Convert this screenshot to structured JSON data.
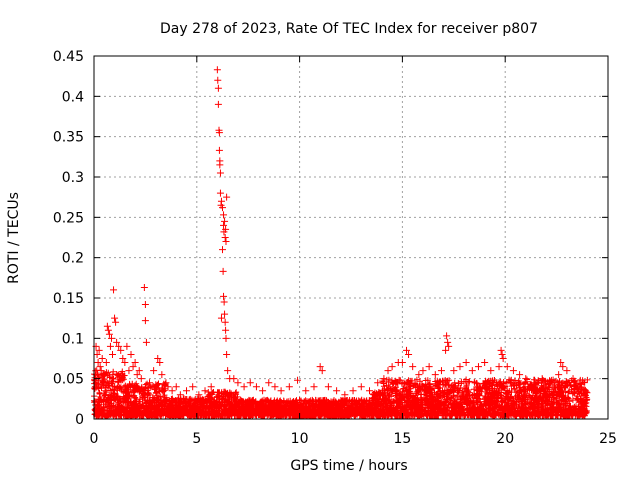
{
  "chart_data": {
    "type": "scatter",
    "title": "Day 278 of 2023, Rate Of TEC Index for receiver p807",
    "xlabel": "GPS time / hours",
    "ylabel": "ROTI / TECUs",
    "xlim": [
      0,
      25
    ],
    "ylim": [
      0,
      0.45
    ],
    "x_ticks": [
      "0",
      "5",
      "10",
      "15",
      "20",
      "25"
    ],
    "y_ticks": [
      "0",
      "0.05",
      "0.1",
      "0.15",
      "0.2",
      "0.25",
      "0.3",
      "0.35",
      "0.4",
      "0.45"
    ],
    "grid": true,
    "marker": "+",
    "series": [
      {
        "color": "#ff0000",
        "points": [
          [
            0.1,
            0.09
          ],
          [
            0.15,
            0.08
          ],
          [
            0.2,
            0.07
          ],
          [
            0.25,
            0.085
          ],
          [
            0.3,
            0.065
          ],
          [
            0.35,
            0.06
          ],
          [
            0.4,
            0.075
          ],
          [
            0.5,
            0.055
          ],
          [
            0.6,
            0.07
          ],
          [
            0.65,
            0.115
          ],
          [
            0.7,
            0.11
          ],
          [
            0.75,
            0.105
          ],
          [
            0.8,
            0.09
          ],
          [
            0.85,
            0.1
          ],
          [
            0.9,
            0.08
          ],
          [
            0.95,
            0.16
          ],
          [
            1.0,
            0.125
          ],
          [
            1.05,
            0.12
          ],
          [
            1.1,
            0.095
          ],
          [
            1.2,
            0.09
          ],
          [
            1.3,
            0.085
          ],
          [
            1.4,
            0.075
          ],
          [
            1.5,
            0.07
          ],
          [
            1.6,
            0.09
          ],
          [
            1.7,
            0.06
          ],
          [
            1.8,
            0.08
          ],
          [
            1.9,
            0.065
          ],
          [
            2.0,
            0.07
          ],
          [
            2.1,
            0.055
          ],
          [
            2.2,
            0.06
          ],
          [
            2.3,
            0.05
          ],
          [
            2.45,
            0.163
          ],
          [
            2.5,
            0.142
          ],
          [
            2.5,
            0.122
          ],
          [
            2.55,
            0.095
          ],
          [
            2.7,
            0.045
          ],
          [
            2.9,
            0.06
          ],
          [
            3.1,
            0.075
          ],
          [
            3.2,
            0.07
          ],
          [
            3.3,
            0.055
          ],
          [
            3.5,
            0.045
          ],
          [
            3.6,
            0.04
          ],
          [
            3.8,
            0.035
          ],
          [
            4.0,
            0.04
          ],
          [
            4.2,
            0.03
          ],
          [
            4.5,
            0.035
          ],
          [
            4.8,
            0.04
          ],
          [
            5.1,
            0.03
          ],
          [
            5.4,
            0.035
          ],
          [
            5.7,
            0.04
          ],
          [
            6.0,
            0.433
          ],
          [
            6.02,
            0.42
          ],
          [
            6.05,
            0.41
          ],
          [
            6.05,
            0.39
          ],
          [
            6.08,
            0.358
          ],
          [
            6.1,
            0.355
          ],
          [
            6.1,
            0.333
          ],
          [
            6.12,
            0.32
          ],
          [
            6.12,
            0.315
          ],
          [
            6.15,
            0.305
          ],
          [
            6.15,
            0.28
          ],
          [
            6.18,
            0.265
          ],
          [
            6.2,
            0.27
          ],
          [
            6.25,
            0.262
          ],
          [
            6.3,
            0.253
          ],
          [
            6.3,
            0.24
          ],
          [
            6.32,
            0.232
          ],
          [
            6.35,
            0.245
          ],
          [
            6.38,
            0.225
          ],
          [
            6.4,
            0.235
          ],
          [
            6.42,
            0.22
          ],
          [
            6.45,
            0.275
          ],
          [
            6.25,
            0.21
          ],
          [
            6.28,
            0.183
          ],
          [
            6.3,
            0.152
          ],
          [
            6.33,
            0.145
          ],
          [
            6.35,
            0.13
          ],
          [
            6.38,
            0.12
          ],
          [
            6.4,
            0.11
          ],
          [
            6.42,
            0.1
          ],
          [
            6.45,
            0.08
          ],
          [
            6.2,
            0.125
          ],
          [
            6.5,
            0.06
          ],
          [
            6.6,
            0.05
          ],
          [
            6.8,
            0.05
          ],
          [
            7.0,
            0.045
          ],
          [
            7.3,
            0.04
          ],
          [
            7.6,
            0.045
          ],
          [
            7.9,
            0.04
          ],
          [
            8.2,
            0.035
          ],
          [
            8.5,
            0.045
          ],
          [
            8.8,
            0.04
          ],
          [
            9.1,
            0.035
          ],
          [
            9.5,
            0.04
          ],
          [
            9.9,
            0.048
          ],
          [
            10.3,
            0.035
          ],
          [
            10.7,
            0.04
          ],
          [
            11.0,
            0.065
          ],
          [
            11.1,
            0.06
          ],
          [
            11.4,
            0.04
          ],
          [
            11.8,
            0.035
          ],
          [
            12.2,
            0.03
          ],
          [
            12.6,
            0.035
          ],
          [
            13.0,
            0.04
          ],
          [
            13.4,
            0.035
          ],
          [
            13.8,
            0.045
          ],
          [
            14.1,
            0.05
          ],
          [
            14.3,
            0.06
          ],
          [
            14.5,
            0.065
          ],
          [
            14.8,
            0.07
          ],
          [
            15.0,
            0.07
          ],
          [
            15.2,
            0.085
          ],
          [
            15.3,
            0.08
          ],
          [
            15.5,
            0.065
          ],
          [
            15.8,
            0.055
          ],
          [
            16.0,
            0.06
          ],
          [
            16.3,
            0.065
          ],
          [
            16.6,
            0.055
          ],
          [
            16.9,
            0.06
          ],
          [
            17.1,
            0.085
          ],
          [
            17.15,
            0.103
          ],
          [
            17.2,
            0.095
          ],
          [
            17.25,
            0.09
          ],
          [
            17.5,
            0.06
          ],
          [
            17.8,
            0.065
          ],
          [
            18.1,
            0.07
          ],
          [
            18.4,
            0.06
          ],
          [
            18.7,
            0.065
          ],
          [
            19.0,
            0.07
          ],
          [
            19.3,
            0.06
          ],
          [
            19.7,
            0.065
          ],
          [
            19.8,
            0.085
          ],
          [
            19.85,
            0.08
          ],
          [
            19.9,
            0.075
          ],
          [
            20.1,
            0.065
          ],
          [
            20.4,
            0.06
          ],
          [
            20.7,
            0.055
          ],
          [
            21.0,
            0.05
          ],
          [
            21.4,
            0.045
          ],
          [
            21.8,
            0.05
          ],
          [
            22.2,
            0.045
          ],
          [
            22.6,
            0.055
          ],
          [
            22.7,
            0.07
          ],
          [
            22.8,
            0.065
          ],
          [
            23.0,
            0.06
          ],
          [
            23.3,
            0.05
          ],
          [
            23.6,
            0.04
          ],
          [
            23.9,
            0.035
          ]
        ]
      }
    ]
  }
}
